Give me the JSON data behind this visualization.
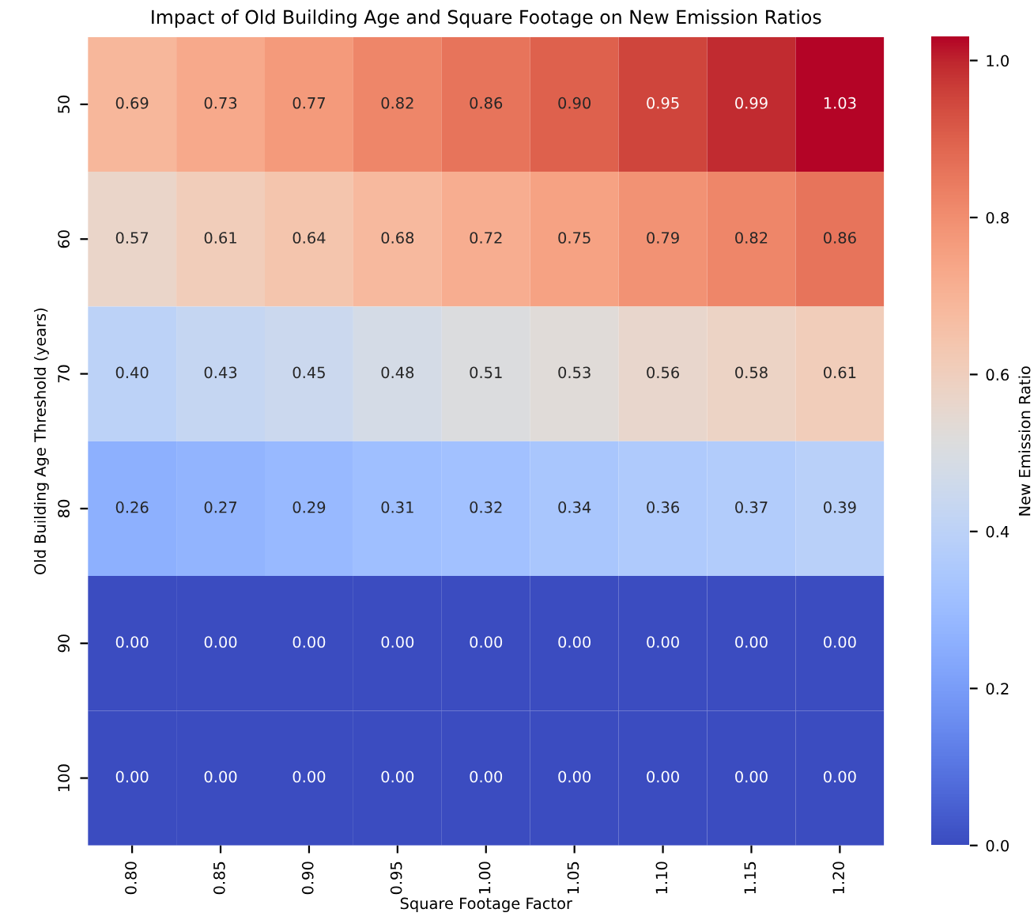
{
  "chart_data": {
    "type": "heatmap",
    "title": "Impact of Old Building Age and Square Footage on New Emission Ratios",
    "xlabel": "Square Footage Factor",
    "ylabel": "Old Building Age Threshold (years)",
    "clabel": "New Emission Ratio",
    "categories": [
      "0.80",
      "0.85",
      "0.90",
      "0.95",
      "1.00",
      "1.05",
      "1.10",
      "1.15",
      "1.20"
    ],
    "y_categories": [
      "50",
      "60",
      "70",
      "80",
      "90",
      "100"
    ],
    "cells": [
      [
        0.69,
        0.73,
        0.77,
        0.82,
        0.86,
        0.9,
        0.95,
        0.99,
        1.03
      ],
      [
        0.57,
        0.61,
        0.64,
        0.68,
        0.72,
        0.75,
        0.79,
        0.82,
        0.86
      ],
      [
        0.4,
        0.43,
        0.45,
        0.48,
        0.51,
        0.53,
        0.56,
        0.58,
        0.61
      ],
      [
        0.26,
        0.27,
        0.29,
        0.31,
        0.32,
        0.34,
        0.36,
        0.37,
        0.39
      ],
      [
        0,
        0,
        0,
        0,
        0,
        0,
        0,
        0,
        0
      ],
      [
        0,
        0,
        0,
        0,
        0,
        0,
        0,
        0,
        0
      ]
    ],
    "cell_labels": [
      [
        "0.69",
        "0.73",
        "0.77",
        "0.82",
        "0.86",
        "0.90",
        "0.95",
        "0.99",
        "1.03"
      ],
      [
        "0.57",
        "0.61",
        "0.64",
        "0.68",
        "0.72",
        "0.75",
        "0.79",
        "0.82",
        "0.86"
      ],
      [
        "0.40",
        "0.43",
        "0.45",
        "0.48",
        "0.51",
        "0.53",
        "0.56",
        "0.58",
        "0.61"
      ],
      [
        "0.26",
        "0.27",
        "0.29",
        "0.31",
        "0.32",
        "0.34",
        "0.36",
        "0.37",
        "0.39"
      ],
      [
        "0.00",
        "0.00",
        "0.00",
        "0.00",
        "0.00",
        "0.00",
        "0.00",
        "0.00",
        "0.00"
      ],
      [
        "0.00",
        "0.00",
        "0.00",
        "0.00",
        "0.00",
        "0.00",
        "0.00",
        "0.00",
        "0.00"
      ]
    ],
    "clim": [
      0,
      1.03
    ],
    "cticks": [
      {
        "value": 0,
        "label": "0.0"
      },
      {
        "value": 0.2,
        "label": "0.2"
      },
      {
        "value": 0.4,
        "label": "0.4"
      },
      {
        "value": 0.6,
        "label": "0.6"
      },
      {
        "value": 0.8,
        "label": "0.8"
      },
      {
        "value": 1.0,
        "label": "1.0"
      }
    ]
  }
}
